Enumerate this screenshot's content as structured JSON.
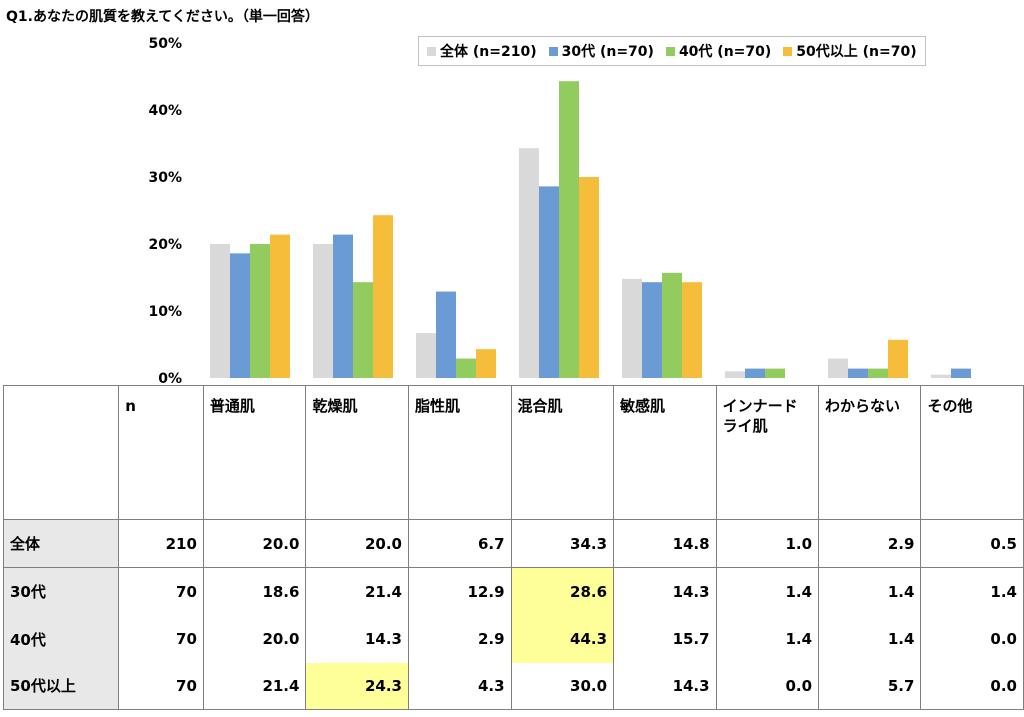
{
  "title": "Q1.あなたの肌質を教えてください。（単一回答）",
  "legend_label": "",
  "chart_data": {
    "type": "bar",
    "categories": [
      "普通肌",
      "乾燥肌",
      "脂性肌",
      "混合肌",
      "敏感肌",
      "インナードライ肌",
      "わからない",
      "その他"
    ],
    "series": [
      {
        "name": "全体 (n=210)",
        "color": "#d9d9d9",
        "values": [
          20.0,
          20.0,
          6.7,
          34.3,
          14.8,
          1.0,
          2.9,
          0.5
        ]
      },
      {
        "name": "30代 (n=70)",
        "color": "#6a9bd4",
        "values": [
          18.6,
          21.4,
          12.9,
          28.6,
          14.3,
          1.4,
          1.4,
          1.4
        ]
      },
      {
        "name": "40代 (n=70)",
        "color": "#92cc5e",
        "values": [
          20.0,
          14.3,
          2.9,
          44.3,
          15.7,
          1.4,
          1.4,
          0.0
        ]
      },
      {
        "name": "50代以上 (n=70)",
        "color": "#f6bd3a",
        "values": [
          21.4,
          24.3,
          4.3,
          30.0,
          14.3,
          0.0,
          5.7,
          0.0
        ]
      }
    ],
    "ylim": [
      0,
      50
    ],
    "yticks": [
      "0%",
      "10%",
      "20%",
      "30%",
      "40%",
      "50%"
    ],
    "grid": false,
    "legend_position": "top-right"
  },
  "table": {
    "header": [
      "n",
      "普通肌",
      "乾燥肌",
      "脂性肌",
      "混合肌",
      "敏感肌",
      "インナードライ肌",
      "わからない",
      "その他"
    ],
    "rows": [
      {
        "label": "全体",
        "n": "210",
        "values": [
          "20.0",
          "20.0",
          "6.7",
          "34.3",
          "14.8",
          "1.0",
          "2.9",
          "0.5"
        ]
      },
      {
        "label": "30代",
        "n": "70",
        "values": [
          "18.6",
          "21.4",
          "12.9",
          "28.6",
          "14.3",
          "1.4",
          "1.4",
          "1.4"
        ]
      },
      {
        "label": "40代",
        "n": "70",
        "values": [
          "20.0",
          "14.3",
          "2.9",
          "44.3",
          "15.7",
          "1.4",
          "1.4",
          "0.0"
        ]
      },
      {
        "label": "50代以上",
        "n": "70",
        "values": [
          "21.4",
          "24.3",
          "4.3",
          "30.0",
          "14.3",
          "0.0",
          "5.7",
          "0.0"
        ]
      }
    ],
    "highlight_color": "#ffff99"
  }
}
